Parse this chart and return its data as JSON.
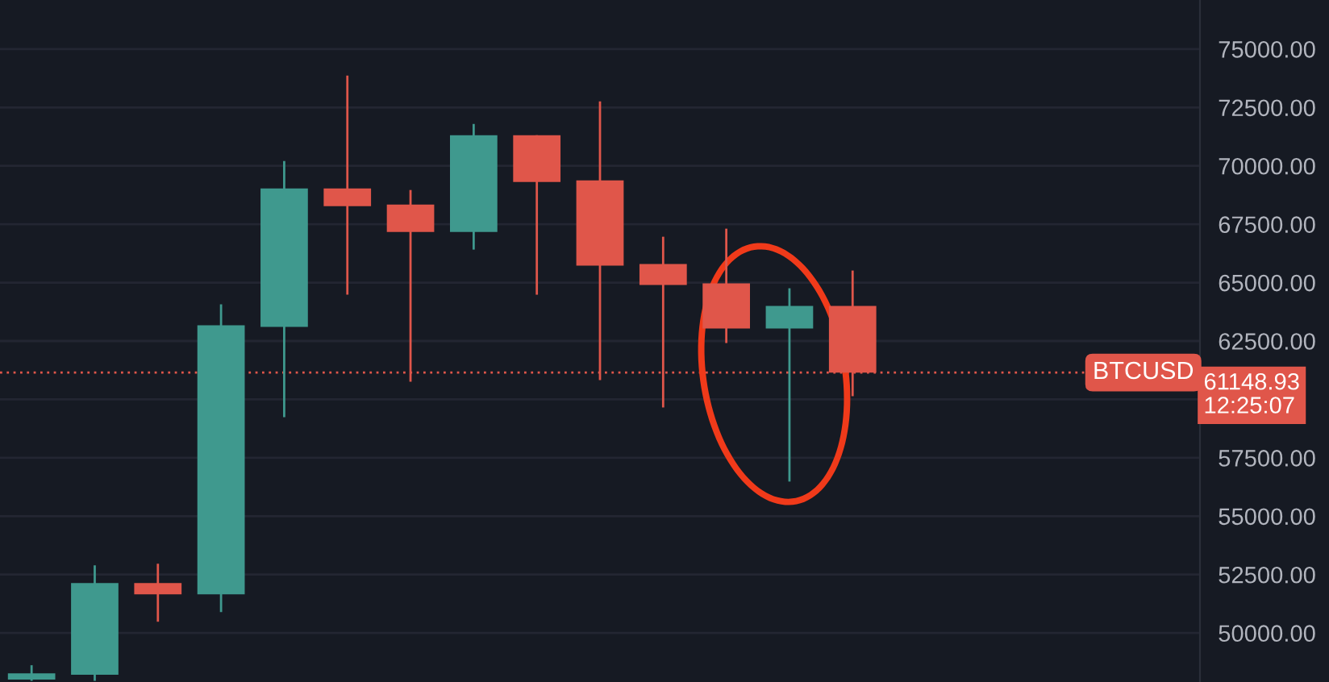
{
  "chart_data": {
    "type": "candlestick",
    "categories": [
      null,
      null,
      null,
      null,
      null,
      null,
      null,
      null,
      null,
      null,
      null,
      null,
      null,
      null,
      null,
      null,
      null,
      null,
      null
    ],
    "ohlc": [
      [
        48000,
        48619,
        47950,
        48274
      ],
      [
        48207,
        52895,
        47950,
        52137
      ],
      [
        52137,
        52964,
        50481,
        51654
      ],
      [
        51654,
        64068,
        50895,
        63172
      ],
      [
        63103,
        70207,
        59240,
        69034
      ],
      [
        69034,
        73862,
        64482,
        68275
      ],
      [
        68344,
        68965,
        60757,
        67172
      ],
      [
        67172,
        71793,
        66413,
        71310
      ],
      [
        71310,
        71310,
        64482,
        69310
      ],
      [
        69379,
        72759,
        60827,
        65724
      ],
      [
        65793,
        66965,
        59654,
        64896
      ],
      [
        64965,
        67310,
        62413,
        63034
      ],
      [
        63034,
        64758,
        56482,
        64000
      ],
      [
        64000,
        65517,
        60137,
        61148.93
      ],
      null,
      null,
      null,
      null,
      null
    ],
    "colors": [
      "#3f998e",
      "#3f998e",
      "#e0564a",
      "#3f998e",
      "#3f998e",
      "#e0564a",
      "#e0564a",
      "#3f998e",
      "#e0564a",
      "#e0564a",
      "#e0564a",
      "#e0564a",
      "#3f998e",
      "#e0564a",
      null,
      null,
      null,
      null,
      null
    ],
    "ylim": [
      47900,
      77100
    ],
    "yticks": [
      {
        "value": 50000,
        "label": "50000.00"
      },
      {
        "value": 52500,
        "label": "52500.00"
      },
      {
        "value": 55000,
        "label": "55000.00"
      },
      {
        "value": 57500,
        "label": "57500.00"
      },
      {
        "value": 60000,
        "label": null
      },
      {
        "value": 62500,
        "label": "62500.00"
      },
      {
        "value": 65000,
        "label": "65000.00"
      },
      {
        "value": 67500,
        "label": "67500.00"
      },
      {
        "value": 70000,
        "label": "70000.00"
      },
      {
        "value": 72500,
        "label": "72500.00"
      },
      {
        "value": 75000,
        "label": "75000.00"
      }
    ],
    "ref_lines": [
      {
        "axis": "y",
        "value": 61148.93,
        "label": "BTCUSD",
        "color": "#e0564a",
        "line_style": "dotted"
      }
    ],
    "annotations": [
      "61148.93",
      "12:25:07"
    ],
    "grid": "y"
  }
}
